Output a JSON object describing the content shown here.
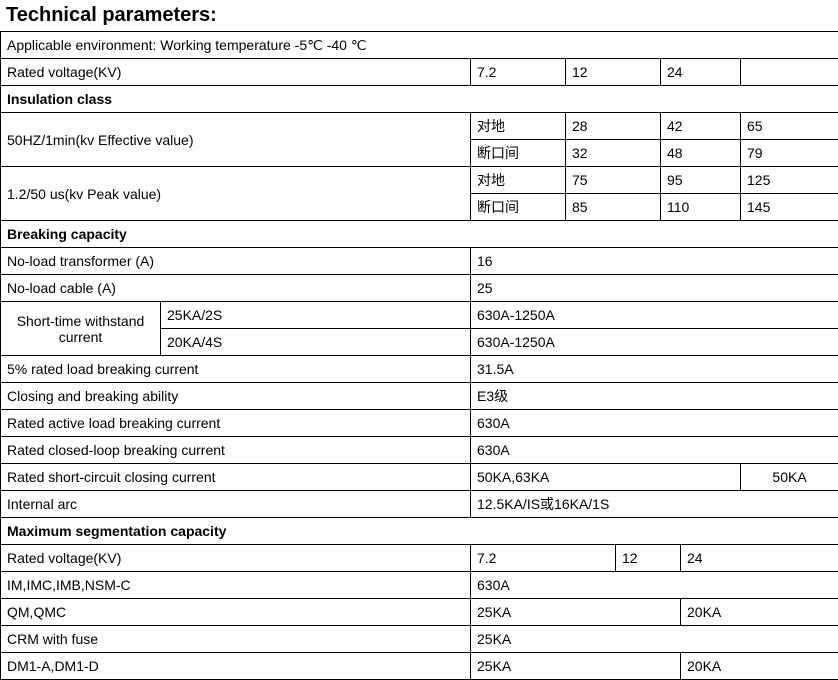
{
  "title": "Technical parameters:",
  "env": "Applicable environment: Working temperature -5℃ -40 ℃",
  "rated_voltage_label": "Rated voltage(KV)",
  "rated_voltage_vals": [
    "7.2",
    "12",
    "24"
  ],
  "insulation_header": "Insulation class",
  "insulation": {
    "row1_label": "50HZ/1min(kv Effective value)",
    "row2_label": "1.2/50 us(kv Peak value)",
    "sub_labels": [
      "对地",
      "断口间",
      "对地",
      "断口间"
    ],
    "vals": [
      [
        "28",
        "42",
        "65"
      ],
      [
        "32",
        "48",
        "79"
      ],
      [
        "75",
        "95",
        "125"
      ],
      [
        "85",
        "110",
        "145"
      ]
    ]
  },
  "breaking_header": "Breaking capacity",
  "breaking": {
    "noload_transformer_label": "No-load transformer (A)",
    "noload_transformer_val": "16",
    "noload_cable_label": "No-load cable (A)",
    "noload_cable_val": "25",
    "short_time_label": "Short-time withstand current",
    "short_time_sub": [
      "25KA/2S",
      "20KA/4S"
    ],
    "short_time_vals": [
      "630A-1250A",
      "630A-1250A"
    ],
    "five_percent_label": "5% rated load breaking current",
    "five_percent_val": "31.5A",
    "closing_ability_label": "Closing and breaking ability",
    "closing_ability_val": "E3级",
    "rated_active_label": "Rated active load breaking current",
    "rated_active_val": "630A",
    "rated_closed_label": "Rated closed-loop breaking current",
    "rated_closed_val": "630A",
    "rated_short_label": "Rated short-circuit closing current",
    "rated_short_vals": [
      "50KA,63KA",
      "50KA"
    ],
    "internal_arc_label": "Internal arc",
    "internal_arc_val": "12.5KA/IS或16KA/1S"
  },
  "max_seg_header": "Maximum segmentation capacity",
  "max_seg": {
    "rated_voltage_label": "Rated voltage(KV)",
    "rated_voltage_vals": [
      "7.2",
      "12",
      "24"
    ],
    "im_label": "IM,IMC,IMB,NSM-C",
    "im_val": "630A",
    "qm_label": "QM,QMC",
    "qm_vals": [
      "25KA",
      "20KA"
    ],
    "crm_label": "CRM with fuse",
    "crm_val": "25KA",
    "dm_label": "DM1-A,DM1-D",
    "dm_vals": [
      "25KA",
      "20KA"
    ]
  }
}
